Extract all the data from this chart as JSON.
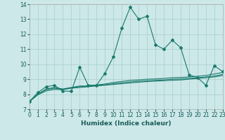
{
  "xlabel": "Humidex (Indice chaleur)",
  "background_color": "#cce8e8",
  "grid_color": "#aacccc",
  "line_color": "#1a7a6e",
  "x_data": [
    0,
    1,
    2,
    3,
    4,
    5,
    6,
    7,
    8,
    9,
    10,
    11,
    12,
    13,
    14,
    15,
    16,
    17,
    18,
    19,
    20,
    21,
    22,
    23
  ],
  "y_main": [
    7.5,
    8.1,
    8.5,
    8.6,
    8.2,
    8.2,
    9.8,
    8.6,
    8.6,
    9.4,
    10.5,
    12.4,
    13.8,
    13.0,
    13.2,
    11.3,
    11.0,
    11.6,
    11.1,
    9.3,
    9.1,
    8.6,
    9.9,
    9.5
  ],
  "y_line2": [
    7.5,
    8.0,
    8.35,
    8.45,
    8.35,
    8.45,
    8.55,
    8.55,
    8.62,
    8.68,
    8.78,
    8.85,
    8.92,
    8.95,
    9.0,
    9.02,
    9.05,
    9.1,
    9.12,
    9.15,
    9.2,
    9.25,
    9.35,
    9.45
  ],
  "y_line3": [
    7.5,
    8.0,
    8.3,
    8.4,
    8.32,
    8.42,
    8.5,
    8.52,
    8.58,
    8.63,
    8.7,
    8.76,
    8.82,
    8.86,
    8.9,
    8.93,
    8.95,
    9.0,
    9.02,
    9.06,
    9.1,
    9.15,
    9.22,
    9.32
  ],
  "y_line4": [
    7.5,
    7.95,
    8.22,
    8.32,
    8.3,
    8.4,
    8.45,
    8.5,
    8.55,
    8.6,
    8.65,
    8.7,
    8.75,
    8.8,
    8.84,
    8.87,
    8.9,
    8.93,
    8.95,
    9.0,
    9.05,
    9.1,
    9.15,
    9.25
  ],
  "ylim": [
    7,
    14
  ],
  "xlim": [
    0,
    23
  ],
  "yticks": [
    7,
    8,
    9,
    10,
    11,
    12,
    13,
    14
  ],
  "xticks": [
    0,
    1,
    2,
    3,
    4,
    5,
    6,
    7,
    8,
    9,
    10,
    11,
    12,
    13,
    14,
    15,
    16,
    17,
    18,
    19,
    20,
    21,
    22,
    23
  ],
  "figsize": [
    3.2,
    2.0
  ],
  "dpi": 100,
  "tick_fontsize": 5.5,
  "xlabel_fontsize": 6.5
}
